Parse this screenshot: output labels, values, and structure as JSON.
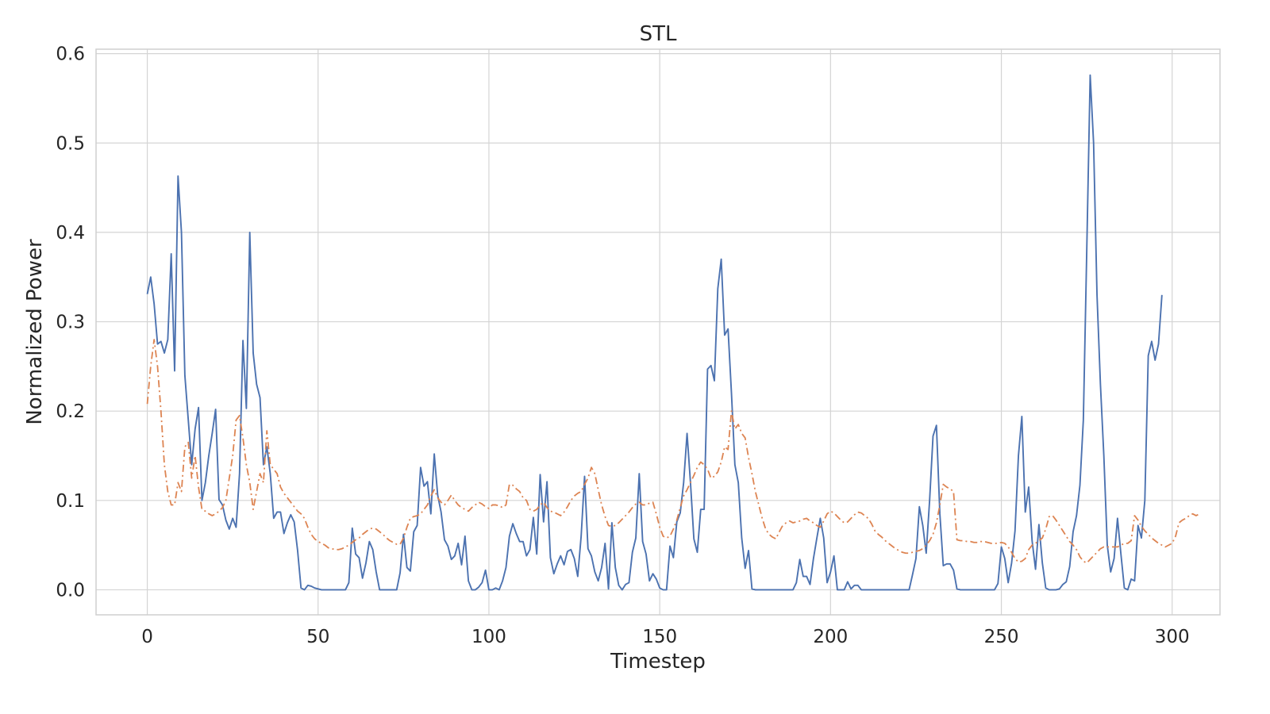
{
  "chart_data": {
    "type": "line",
    "title": "STL",
    "xlabel": "Timestep",
    "ylabel": "Normalized Power",
    "xlim": [
      -15,
      314
    ],
    "ylim": [
      -0.028,
      0.605
    ],
    "xticks": [
      0,
      50,
      100,
      150,
      200,
      250,
      300
    ],
    "yticks": [
      0.0,
      0.1,
      0.2,
      0.3,
      0.4,
      0.5,
      0.6
    ],
    "xtick_labels": [
      "0",
      "50",
      "100",
      "150",
      "200",
      "250",
      "300"
    ],
    "ytick_labels": [
      "0.0",
      "0.1",
      "0.2",
      "0.3",
      "0.4",
      "0.5",
      "0.6"
    ],
    "grid": true,
    "legend": "none",
    "series": [
      {
        "color": "#4c72b0",
        "style": "solid",
        "x_start": 0,
        "values": [
          0.331,
          0.35,
          0.32,
          0.275,
          0.278,
          0.265,
          0.28,
          0.376,
          0.245,
          0.463,
          0.4,
          0.24,
          0.19,
          0.14,
          0.18,
          0.204,
          0.1,
          0.12,
          0.15,
          0.175,
          0.202,
          0.101,
          0.095,
          0.078,
          0.068,
          0.08,
          0.07,
          0.13,
          0.279,
          0.203,
          0.4,
          0.265,
          0.23,
          0.215,
          0.14,
          0.16,
          0.13,
          0.08,
          0.087,
          0.087,
          0.063,
          0.075,
          0.084,
          0.076,
          0.044,
          0.002,
          0.0,
          0.005,
          0.004,
          0.002,
          0.001,
          0.0,
          0.0,
          0.0,
          0.0,
          0.0,
          0.0,
          0.0,
          0.0,
          0.008,
          0.069,
          0.04,
          0.036,
          0.013,
          0.03,
          0.054,
          0.045,
          0.02,
          0.0,
          0.0,
          0.0,
          0.0,
          0.0,
          0.0,
          0.019,
          0.062,
          0.025,
          0.021,
          0.065,
          0.072,
          0.137,
          0.116,
          0.121,
          0.085,
          0.152,
          0.106,
          0.087,
          0.056,
          0.049,
          0.034,
          0.038,
          0.052,
          0.028,
          0.06,
          0.01,
          0.0,
          0.0,
          0.003,
          0.008,
          0.022,
          0.0,
          0.0,
          0.002,
          0.0,
          0.01,
          0.025,
          0.06,
          0.074,
          0.063,
          0.054,
          0.054,
          0.038,
          0.045,
          0.081,
          0.04,
          0.129,
          0.076,
          0.121,
          0.036,
          0.018,
          0.029,
          0.038,
          0.028,
          0.043,
          0.045,
          0.035,
          0.015,
          0.06,
          0.127,
          0.046,
          0.038,
          0.02,
          0.01,
          0.025,
          0.052,
          0.001,
          0.075,
          0.025,
          0.005,
          0.0,
          0.006,
          0.008,
          0.042,
          0.058,
          0.13,
          0.054,
          0.04,
          0.01,
          0.018,
          0.012,
          0.002,
          0.0,
          0.0,
          0.049,
          0.036,
          0.076,
          0.086,
          0.12,
          0.175,
          0.12,
          0.057,
          0.042,
          0.09,
          0.09,
          0.247,
          0.251,
          0.234,
          0.337,
          0.37,
          0.285,
          0.292,
          0.22,
          0.14,
          0.12,
          0.058,
          0.024,
          0.044,
          0.001,
          0.0,
          0.0,
          0.0,
          0.0,
          0.0,
          0.0,
          0.0,
          0.0,
          0.0,
          0.0,
          0.0,
          0.0,
          0.008,
          0.034,
          0.015,
          0.015,
          0.006,
          0.035,
          0.058,
          0.08,
          0.058,
          0.008,
          0.02,
          0.038,
          0.0,
          0.0,
          0.0,
          0.009,
          0.001,
          0.005,
          0.005,
          0.0,
          0.0,
          0.0,
          0.0,
          0.0,
          0.0,
          0.0,
          0.0,
          0.0,
          0.0,
          0.0,
          0.0,
          0.0,
          0.0,
          0.0,
          0.017,
          0.035,
          0.093,
          0.072,
          0.041,
          0.1,
          0.172,
          0.184,
          0.085,
          0.027,
          0.029,
          0.029,
          0.022,
          0.001,
          0.0,
          0.0,
          0.0,
          0.0,
          0.0,
          0.0,
          0.0,
          0.0,
          0.0,
          0.0,
          0.0,
          0.007,
          0.048,
          0.035,
          0.008,
          0.03,
          0.066,
          0.15,
          0.194,
          0.087,
          0.115,
          0.055,
          0.023,
          0.073,
          0.03,
          0.002,
          0.0,
          0.0,
          0.0,
          0.001,
          0.006,
          0.009,
          0.026,
          0.065,
          0.083,
          0.117,
          0.19,
          0.38,
          0.576,
          0.5,
          0.33,
          0.23,
          0.15,
          0.05,
          0.02,
          0.035,
          0.08,
          0.04,
          0.002,
          0.0,
          0.012,
          0.01,
          0.072,
          0.058,
          0.1,
          0.262,
          0.278,
          0.257,
          0.275,
          0.33
        ]
      },
      {
        "color": "#dd8452",
        "style": "dashdot",
        "x_start": 0,
        "values": [
          0.208,
          0.25,
          0.28,
          0.25,
          0.2,
          0.14,
          0.11,
          0.095,
          0.095,
          0.12,
          0.11,
          0.16,
          0.165,
          0.125,
          0.15,
          0.115,
          0.09,
          0.088,
          0.085,
          0.083,
          0.085,
          0.088,
          0.092,
          0.1,
          0.125,
          0.15,
          0.19,
          0.195,
          0.17,
          0.14,
          0.12,
          0.09,
          0.11,
          0.13,
          0.12,
          0.178,
          0.14,
          0.135,
          0.13,
          0.115,
          0.108,
          0.103,
          0.098,
          0.093,
          0.088,
          0.085,
          0.08,
          0.07,
          0.062,
          0.057,
          0.054,
          0.052,
          0.05,
          0.047,
          0.046,
          0.045,
          0.045,
          0.046,
          0.048,
          0.05,
          0.053,
          0.056,
          0.058,
          0.062,
          0.065,
          0.068,
          0.069,
          0.068,
          0.065,
          0.062,
          0.058,
          0.055,
          0.053,
          0.051,
          0.051,
          0.058,
          0.07,
          0.08,
          0.082,
          0.083,
          0.085,
          0.09,
          0.095,
          0.105,
          0.112,
          0.103,
          0.098,
          0.095,
          0.1,
          0.106,
          0.1,
          0.095,
          0.092,
          0.09,
          0.088,
          0.092,
          0.095,
          0.098,
          0.096,
          0.093,
          0.091,
          0.095,
          0.095,
          0.094,
          0.092,
          0.095,
          0.118,
          0.117,
          0.113,
          0.11,
          0.103,
          0.1,
          0.09,
          0.088,
          0.09,
          0.095,
          0.098,
          0.092,
          0.088,
          0.087,
          0.085,
          0.083,
          0.087,
          0.093,
          0.1,
          0.105,
          0.108,
          0.11,
          0.118,
          0.125,
          0.137,
          0.13,
          0.112,
          0.095,
          0.082,
          0.072,
          0.071,
          0.072,
          0.075,
          0.079,
          0.083,
          0.087,
          0.092,
          0.096,
          0.098,
          0.095,
          0.095,
          0.097,
          0.098,
          0.085,
          0.07,
          0.06,
          0.058,
          0.06,
          0.068,
          0.078,
          0.092,
          0.105,
          0.112,
          0.12,
          0.128,
          0.137,
          0.143,
          0.14,
          0.135,
          0.125,
          0.127,
          0.132,
          0.143,
          0.16,
          0.157,
          0.2,
          0.18,
          0.185,
          0.175,
          0.17,
          0.148,
          0.13,
          0.11,
          0.095,
          0.08,
          0.068,
          0.062,
          0.059,
          0.057,
          0.065,
          0.072,
          0.075,
          0.077,
          0.075,
          0.076,
          0.077,
          0.079,
          0.08,
          0.077,
          0.075,
          0.072,
          0.07,
          0.077,
          0.085,
          0.088,
          0.086,
          0.082,
          0.078,
          0.075,
          0.076,
          0.08,
          0.084,
          0.087,
          0.086,
          0.083,
          0.08,
          0.074,
          0.066,
          0.062,
          0.059,
          0.055,
          0.052,
          0.049,
          0.046,
          0.044,
          0.042,
          0.041,
          0.041,
          0.042,
          0.043,
          0.044,
          0.046,
          0.05,
          0.055,
          0.062,
          0.075,
          0.095,
          0.118,
          0.115,
          0.113,
          0.11,
          0.056,
          0.055,
          0.055,
          0.054,
          0.054,
          0.053,
          0.053,
          0.054,
          0.054,
          0.053,
          0.052,
          0.052,
          0.052,
          0.053,
          0.052,
          0.048,
          0.042,
          0.035,
          0.031,
          0.032,
          0.035,
          0.045,
          0.05,
          0.052,
          0.055,
          0.058,
          0.068,
          0.082,
          0.083,
          0.078,
          0.072,
          0.066,
          0.06,
          0.054,
          0.05,
          0.045,
          0.037,
          0.032,
          0.03,
          0.034,
          0.038,
          0.042,
          0.046,
          0.048,
          0.048,
          0.048,
          0.048,
          0.048,
          0.05,
          0.052,
          0.052,
          0.055,
          0.083,
          0.078,
          0.071,
          0.066,
          0.062,
          0.058,
          0.055,
          0.052,
          0.05,
          0.048,
          0.05,
          0.052,
          0.06,
          0.075,
          0.078,
          0.08,
          0.083,
          0.085,
          0.083,
          0.085
        ]
      }
    ]
  }
}
